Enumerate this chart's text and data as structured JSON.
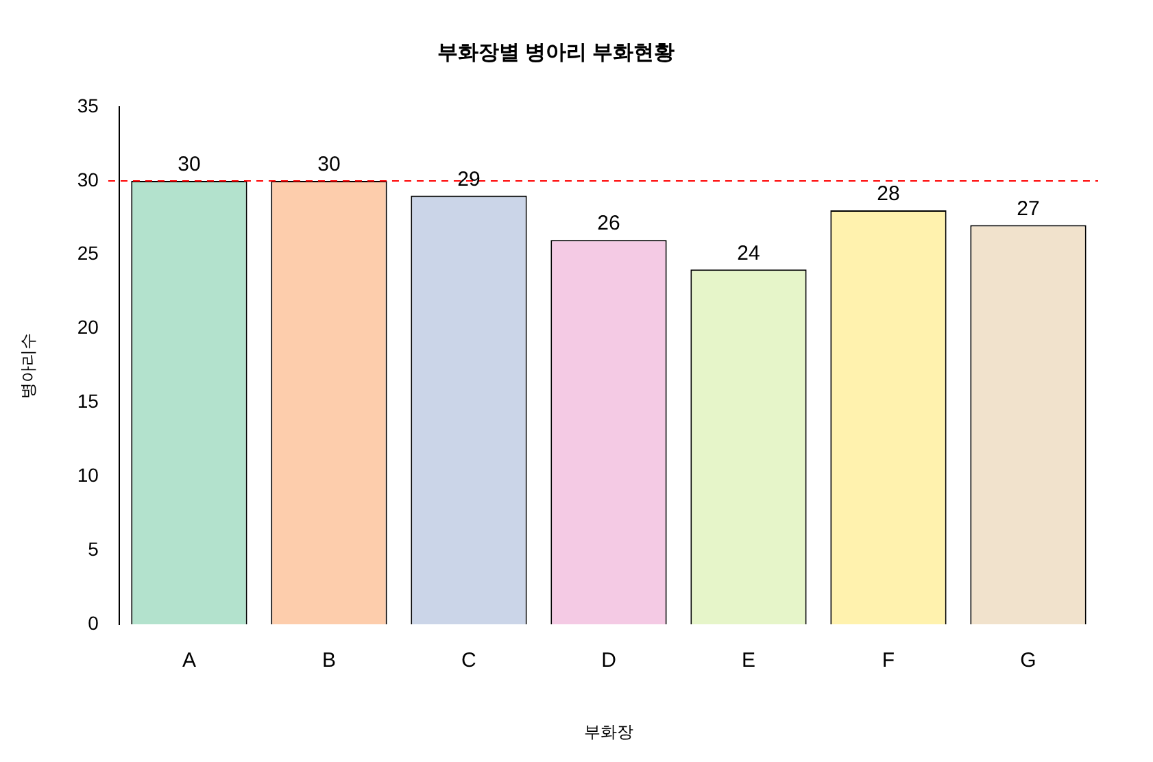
{
  "chart_data": {
    "type": "bar",
    "title": "부화장별 병아리 부화현황",
    "xlabel": "부화장",
    "ylabel": "병아리수",
    "categories": [
      "A",
      "B",
      "C",
      "D",
      "E",
      "F",
      "G"
    ],
    "values": [
      30,
      30,
      29,
      26,
      24,
      28,
      27
    ],
    "colors": [
      "#b3e2cd",
      "#fdcdac",
      "#cbd5e8",
      "#f4cae4",
      "#e6f5c9",
      "#fff2ae",
      "#f1e2cc"
    ],
    "ylim": [
      0,
      35
    ],
    "yticks": [
      0,
      5,
      10,
      15,
      20,
      25,
      30,
      35
    ],
    "grid": false,
    "legend": false,
    "data_labels": true,
    "ref_lines": [
      {
        "axis": "y",
        "value": 30,
        "color": "#ff0000",
        "line_style": "dashed"
      }
    ]
  }
}
